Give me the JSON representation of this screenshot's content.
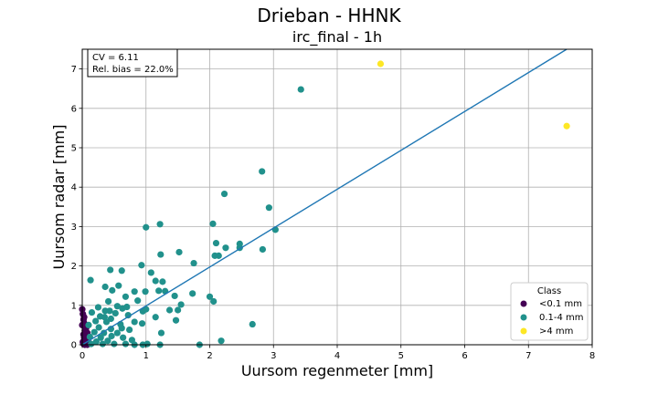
{
  "chart_data": {
    "type": "scatter",
    "title": "Drieban - HHNK",
    "subtitle": "irc_final - 1h",
    "xlabel": "Uursom regenmeter [mm]",
    "ylabel": "Uursom radar [mm]",
    "xlim": [
      0,
      8
    ],
    "ylim": [
      0,
      7.5
    ],
    "xticks": [
      0,
      1,
      2,
      3,
      4,
      5,
      6,
      7,
      8
    ],
    "yticks": [
      0,
      1,
      2,
      3,
      4,
      5,
      6,
      7
    ],
    "grid": true,
    "stats": {
      "line1": "CV = 6.11",
      "line2": "Rel. bias = 22.0%"
    },
    "legend": {
      "title": "Class",
      "placement": "lower-right",
      "entries": [
        {
          "label": "<0.1 mm",
          "color": "#440154"
        },
        {
          "label": "0.1-4 mm",
          "color": "#21918c"
        },
        {
          "label": ">4 mm",
          "color": "#fde725"
        }
      ]
    },
    "regression_line": {
      "color": "#1f77b4",
      "x": [
        0.0,
        7.6
      ],
      "y": [
        0.0,
        7.5
      ]
    },
    "series": [
      {
        "name": "<0.1 mm",
        "color": "#440154",
        "points": [
          [
            0.0,
            0.9
          ],
          [
            0.01,
            0.78
          ],
          [
            0.02,
            0.64
          ],
          [
            0.03,
            0.55
          ],
          [
            0.05,
            0.48
          ],
          [
            0.06,
            0.42
          ],
          [
            0.04,
            0.36
          ],
          [
            0.08,
            0.3
          ],
          [
            0.02,
            0.26
          ],
          [
            0.07,
            0.22
          ],
          [
            0.03,
            0.18
          ],
          [
            0.09,
            0.14
          ],
          [
            0.05,
            0.1
          ],
          [
            0.01,
            0.07
          ],
          [
            0.06,
            0.04
          ],
          [
            0.02,
            0.02
          ],
          [
            0.04,
            0.0
          ],
          [
            0.08,
            0.0
          ],
          [
            0.0,
            0.5
          ],
          [
            0.03,
            0.7
          ]
        ]
      },
      {
        "name": "0.1-4 mm",
        "color": "#21918c",
        "points": [
          [
            3.43,
            6.48
          ],
          [
            2.82,
            4.4
          ],
          [
            2.23,
            3.83
          ],
          [
            2.93,
            3.48
          ],
          [
            1.22,
            3.06
          ],
          [
            2.05,
            3.07
          ],
          [
            1.0,
            2.98
          ],
          [
            3.03,
            2.92
          ],
          [
            2.1,
            2.58
          ],
          [
            2.25,
            2.46
          ],
          [
            2.83,
            2.42
          ],
          [
            2.47,
            2.46
          ],
          [
            2.47,
            2.56
          ],
          [
            1.52,
            2.35
          ],
          [
            1.23,
            2.29
          ],
          [
            2.14,
            2.26
          ],
          [
            2.08,
            2.26
          ],
          [
            1.75,
            2.07
          ],
          [
            0.93,
            2.02
          ],
          [
            1.08,
            1.83
          ],
          [
            0.44,
            1.9
          ],
          [
            0.62,
            1.88
          ],
          [
            0.13,
            1.64
          ],
          [
            1.15,
            1.62
          ],
          [
            1.26,
            1.6
          ],
          [
            1.2,
            1.37
          ],
          [
            0.36,
            1.47
          ],
          [
            0.57,
            1.5
          ],
          [
            0.82,
            1.35
          ],
          [
            0.99,
            1.35
          ],
          [
            1.3,
            1.36
          ],
          [
            1.45,
            1.24
          ],
          [
            2.0,
            1.22
          ],
          [
            1.73,
            1.3
          ],
          [
            2.06,
            1.1
          ],
          [
            0.87,
            1.12
          ],
          [
            0.41,
            1.1
          ],
          [
            0.68,
            1.22
          ],
          [
            1.55,
            1.02
          ],
          [
            1.0,
            0.9
          ],
          [
            0.95,
            0.85
          ],
          [
            1.37,
            0.88
          ],
          [
            1.5,
            0.88
          ],
          [
            1.15,
            0.7
          ],
          [
            1.47,
            0.62
          ],
          [
            0.94,
            0.54
          ],
          [
            0.55,
            0.98
          ],
          [
            0.63,
            0.92
          ],
          [
            0.36,
            0.86
          ],
          [
            0.15,
            0.82
          ],
          [
            0.28,
            0.72
          ],
          [
            0.45,
            0.66
          ],
          [
            0.52,
            0.8
          ],
          [
            0.72,
            0.75
          ],
          [
            0.82,
            0.58
          ],
          [
            0.6,
            0.52
          ],
          [
            0.38,
            0.58
          ],
          [
            0.21,
            0.6
          ],
          [
            0.1,
            0.5
          ],
          [
            0.26,
            0.44
          ],
          [
            0.45,
            0.4
          ],
          [
            0.62,
            0.42
          ],
          [
            0.74,
            0.38
          ],
          [
            0.55,
            0.3
          ],
          [
            0.34,
            0.3
          ],
          [
            0.19,
            0.32
          ],
          [
            0.12,
            0.2
          ],
          [
            0.29,
            0.18
          ],
          [
            0.46,
            0.22
          ],
          [
            0.64,
            0.18
          ],
          [
            0.78,
            0.12
          ],
          [
            0.4,
            0.1
          ],
          [
            0.22,
            0.08
          ],
          [
            0.14,
            0.02
          ],
          [
            0.32,
            0.02
          ],
          [
            0.5,
            0.02
          ],
          [
            0.68,
            0.02
          ],
          [
            0.82,
            0.0
          ],
          [
            0.95,
            0.0
          ],
          [
            1.02,
            0.02
          ],
          [
            1.22,
            0.0
          ],
          [
            1.84,
            0.0
          ],
          [
            2.18,
            0.1
          ],
          [
            2.67,
            0.52
          ],
          [
            1.24,
            0.3
          ],
          [
            0.43,
            0.86
          ],
          [
            0.25,
            0.95
          ],
          [
            0.7,
            0.96
          ],
          [
            0.47,
            1.38
          ],
          [
            0.35,
            0.7
          ]
        ]
      },
      {
        "name": ">4 mm",
        "color": "#fde725",
        "points": [
          [
            4.68,
            7.13
          ],
          [
            7.6,
            5.55
          ]
        ]
      }
    ]
  }
}
